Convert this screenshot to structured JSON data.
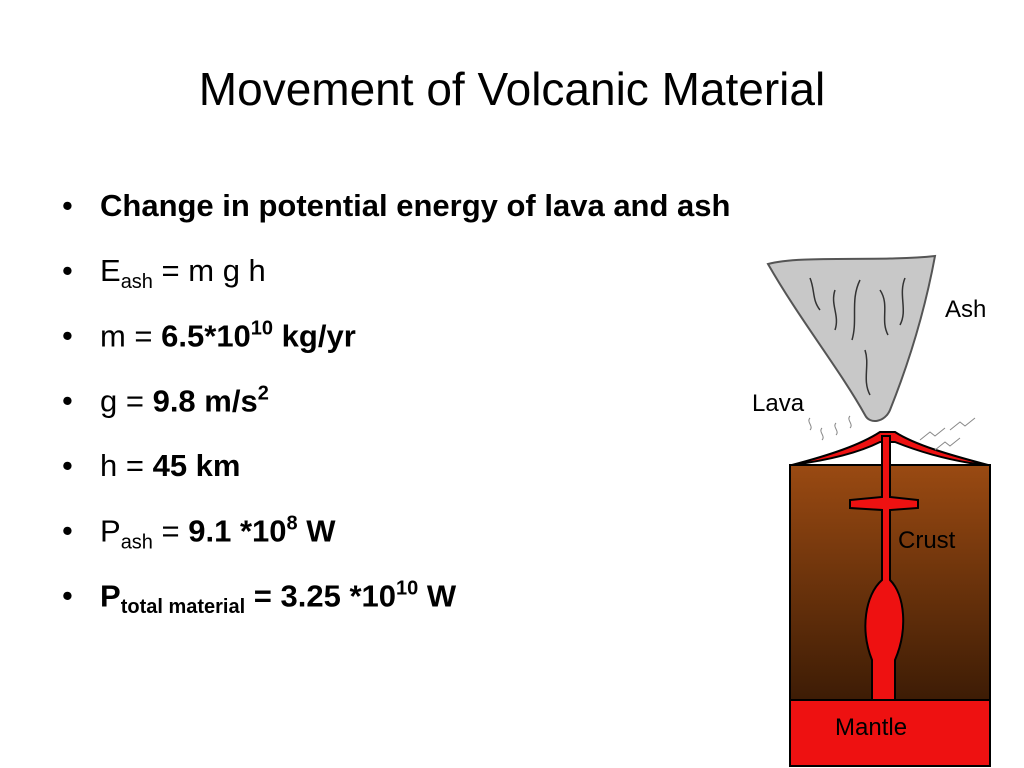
{
  "title": "Movement of Volcanic Material",
  "bullets": [
    [
      "Change in potential energy of lava and ash"
    ],
    [
      "E",
      "ash",
      " = m g h"
    ],
    [
      "m = ",
      "6.5*10",
      "10",
      " kg/yr"
    ],
    [
      "g = ",
      "9.8 m/s",
      "2"
    ],
    [
      "h = ",
      "45 km"
    ],
    [
      "P",
      "ash",
      " = ",
      "9.1 *10",
      "8",
      " W"
    ],
    [
      "P",
      "total material",
      " = 3.25 *10",
      "10",
      " W"
    ]
  ],
  "diagram": {
    "labels": {
      "ash": "Ash",
      "lava": "Lava",
      "crust": "Crust",
      "mantle": "Mantle"
    }
  }
}
